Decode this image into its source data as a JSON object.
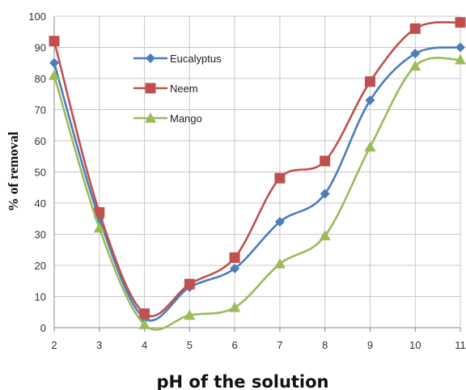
{
  "chart_data": {
    "type": "line",
    "title": "",
    "xlabel": "pH of the solution",
    "ylabel": "% of removal",
    "x": [
      2,
      3,
      4,
      5,
      6,
      7,
      8,
      9,
      10,
      11
    ],
    "xlim": [
      2,
      11
    ],
    "ylim": [
      0,
      100
    ],
    "y_ticks": [
      0,
      10,
      20,
      30,
      40,
      50,
      60,
      70,
      80,
      90,
      100
    ],
    "x_ticks": [
      2,
      3,
      4,
      5,
      6,
      7,
      8,
      9,
      10,
      11
    ],
    "grid": true,
    "legend_position": "top-center",
    "series": [
      {
        "name": "Eucalyptus",
        "color": "#4a7ebb",
        "marker": "diamond",
        "values": [
          85,
          35,
          3,
          13,
          19,
          34,
          43,
          73,
          88,
          90
        ]
      },
      {
        "name": "Neem",
        "color": "#c0504d",
        "marker": "square",
        "values": [
          92,
          37,
          4.5,
          14,
          22.5,
          48,
          53.5,
          79,
          96,
          98
        ]
      },
      {
        "name": "Mango",
        "color": "#9bbb59",
        "marker": "triangle",
        "values": [
          81,
          32,
          1,
          4,
          6.5,
          20.5,
          29.5,
          58,
          84,
          86
        ]
      }
    ]
  }
}
